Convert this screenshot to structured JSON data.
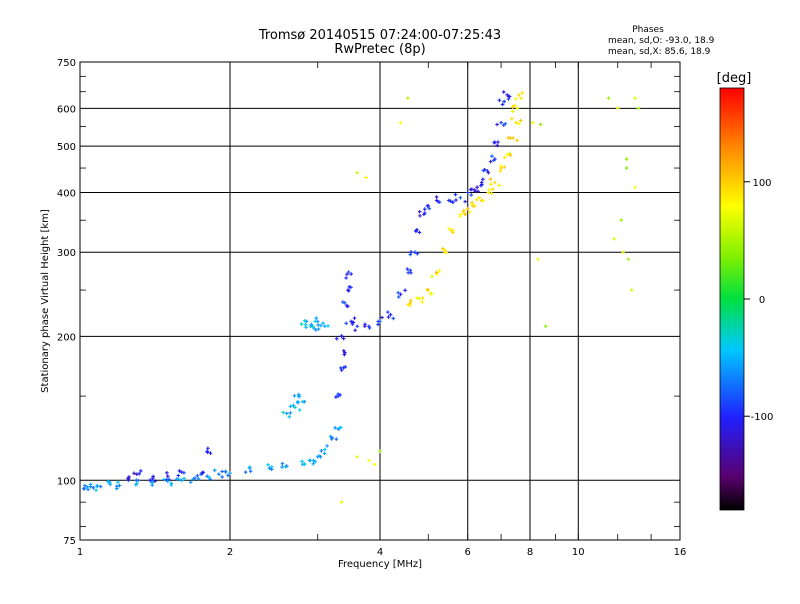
{
  "chart_data": {
    "type": "scatter",
    "title": "Tromsø 20140515 07:24:00-07:25:43",
    "subtitle": "RwPretec (8p)",
    "xlabel": "Frequency [MHz]",
    "ylabel": "Stationary phase Virtual Height [km]",
    "x_scale": "log",
    "y_scale": "log",
    "xlim": [
      1,
      16
    ],
    "ylim": [
      75,
      750
    ],
    "x_ticks": [
      1,
      2,
      4,
      6,
      8,
      10,
      16
    ],
    "x_tick_labels": [
      "1",
      "2",
      "4",
      "6",
      "8",
      "10",
      "16"
    ],
    "y_ticks": [
      75,
      100,
      200,
      300,
      400,
      500,
      600,
      750
    ],
    "y_tick_labels": [
      "75",
      "100",
      "200",
      "300",
      "400",
      "500",
      "600",
      "750"
    ],
    "grid": true,
    "phase_info": {
      "heading": "Phases",
      "line_o": "mean, sd,O: -93.0, 18.9",
      "line_x": "mean, sd,X: 85.6, 18.9"
    },
    "colorbar": {
      "label": "[deg]",
      "range": [
        -180,
        180
      ],
      "ticks": [
        100,
        0,
        -100
      ],
      "tick_labels": [
        "100",
        "0",
        "-100"
      ],
      "colormap": "rainbow (black→purple→blue→cyan→green→yellow→red)"
    },
    "series": [
      {
        "trace": "low-layer-trace",
        "approx_phase_deg": -60,
        "points": [
          [
            1.02,
            96
          ],
          [
            1.05,
            97
          ],
          [
            1.1,
            97
          ],
          [
            1.15,
            98
          ],
          [
            1.2,
            97.5
          ],
          [
            1.3,
            98.5
          ],
          [
            1.4,
            99
          ],
          [
            1.5,
            99.5
          ],
          [
            1.6,
            100
          ],
          [
            1.7,
            101
          ],
          [
            1.8,
            102
          ],
          [
            1.9,
            103
          ],
          [
            2.0,
            103.5
          ],
          [
            2.2,
            104.5
          ],
          [
            2.4,
            106
          ],
          [
            2.6,
            107
          ],
          [
            2.8,
            108
          ],
          [
            2.9,
            110
          ],
          [
            3.0,
            112
          ],
          [
            3.1,
            116
          ],
          [
            3.2,
            122
          ],
          [
            3.3,
            128
          ]
        ]
      },
      {
        "trace": "low-layer-blue",
        "approx_phase_deg": -100,
        "points": [
          [
            1.25,
            100
          ],
          [
            1.3,
            103
          ],
          [
            1.4,
            101
          ],
          [
            1.5,
            102
          ],
          [
            1.6,
            104
          ],
          [
            1.75,
            103
          ],
          [
            1.8,
            115
          ]
        ]
      },
      {
        "trace": "sporadic-cyan",
        "approx_phase_deg": -45,
        "points": [
          [
            2.6,
            138
          ],
          [
            2.7,
            142
          ],
          [
            2.75,
            150
          ],
          [
            2.8,
            146
          ],
          [
            2.85,
            215
          ],
          [
            2.9,
            210
          ],
          [
            2.95,
            208
          ],
          [
            3.0,
            215
          ],
          [
            3.1,
            210
          ]
        ]
      },
      {
        "trace": "f1-o-mode-low",
        "approx_phase_deg": -100,
        "points": [
          [
            3.3,
            150
          ],
          [
            3.35,
            170
          ],
          [
            3.4,
            185
          ],
          [
            3.35,
            200
          ],
          [
            3.4,
            235
          ],
          [
            3.45,
            250
          ],
          [
            3.5,
            270
          ],
          [
            3.5,
            215
          ],
          [
            3.6,
            210
          ],
          [
            3.8,
            210
          ],
          [
            4.0,
            215
          ],
          [
            4.2,
            222
          ],
          [
            4.4,
            245
          ],
          [
            4.6,
            275
          ],
          [
            4.7,
            300
          ],
          [
            4.8,
            330
          ],
          [
            4.9,
            360
          ],
          [
            5.0,
            375
          ],
          [
            5.2,
            385
          ],
          [
            5.5,
            385
          ],
          [
            5.8,
            390
          ],
          [
            6.0,
            400
          ],
          [
            6.2,
            405
          ],
          [
            6.4,
            420
          ],
          [
            6.6,
            440
          ],
          [
            6.8,
            470
          ],
          [
            6.9,
            510
          ],
          [
            7.0,
            560
          ],
          [
            7.1,
            620
          ],
          [
            7.2,
            640
          ]
        ]
      },
      {
        "trace": "f1-x-mode",
        "approx_phase_deg": 90,
        "points": [
          [
            4.6,
            235
          ],
          [
            4.8,
            240
          ],
          [
            5.0,
            250
          ],
          [
            5.2,
            270
          ],
          [
            5.4,
            300
          ],
          [
            5.6,
            330
          ],
          [
            5.8,
            360
          ],
          [
            6.0,
            370
          ],
          [
            6.2,
            375
          ],
          [
            6.4,
            385
          ],
          [
            6.6,
            400
          ],
          [
            6.8,
            420
          ],
          [
            7.0,
            450
          ],
          [
            7.2,
            480
          ],
          [
            7.4,
            520
          ],
          [
            7.5,
            560
          ],
          [
            7.55,
            600
          ],
          [
            7.6,
            640
          ]
        ]
      },
      {
        "trace": "scattered-points",
        "approx_phase_deg": 60,
        "points": [
          [
            4.4,
            560
          ],
          [
            4.55,
            630
          ],
          [
            3.75,
            430
          ],
          [
            3.6,
            440
          ],
          [
            8.1,
            560
          ],
          [
            8.4,
            555
          ],
          [
            8.6,
            210
          ],
          [
            8.3,
            290
          ],
          [
            11.5,
            630
          ],
          [
            12.0,
            600
          ],
          [
            12.5,
            470
          ],
          [
            12.5,
            450
          ],
          [
            12.2,
            350
          ],
          [
            12.3,
            300
          ],
          [
            11.8,
            320
          ],
          [
            13.0,
            630
          ],
          [
            13.2,
            600
          ],
          [
            13.0,
            410
          ],
          [
            12.8,
            250
          ],
          [
            12.6,
            290
          ],
          [
            3.35,
            90
          ],
          [
            3.6,
            112
          ],
          [
            3.8,
            110
          ],
          [
            3.9,
            108
          ],
          [
            4.0,
            115
          ]
        ]
      }
    ]
  }
}
